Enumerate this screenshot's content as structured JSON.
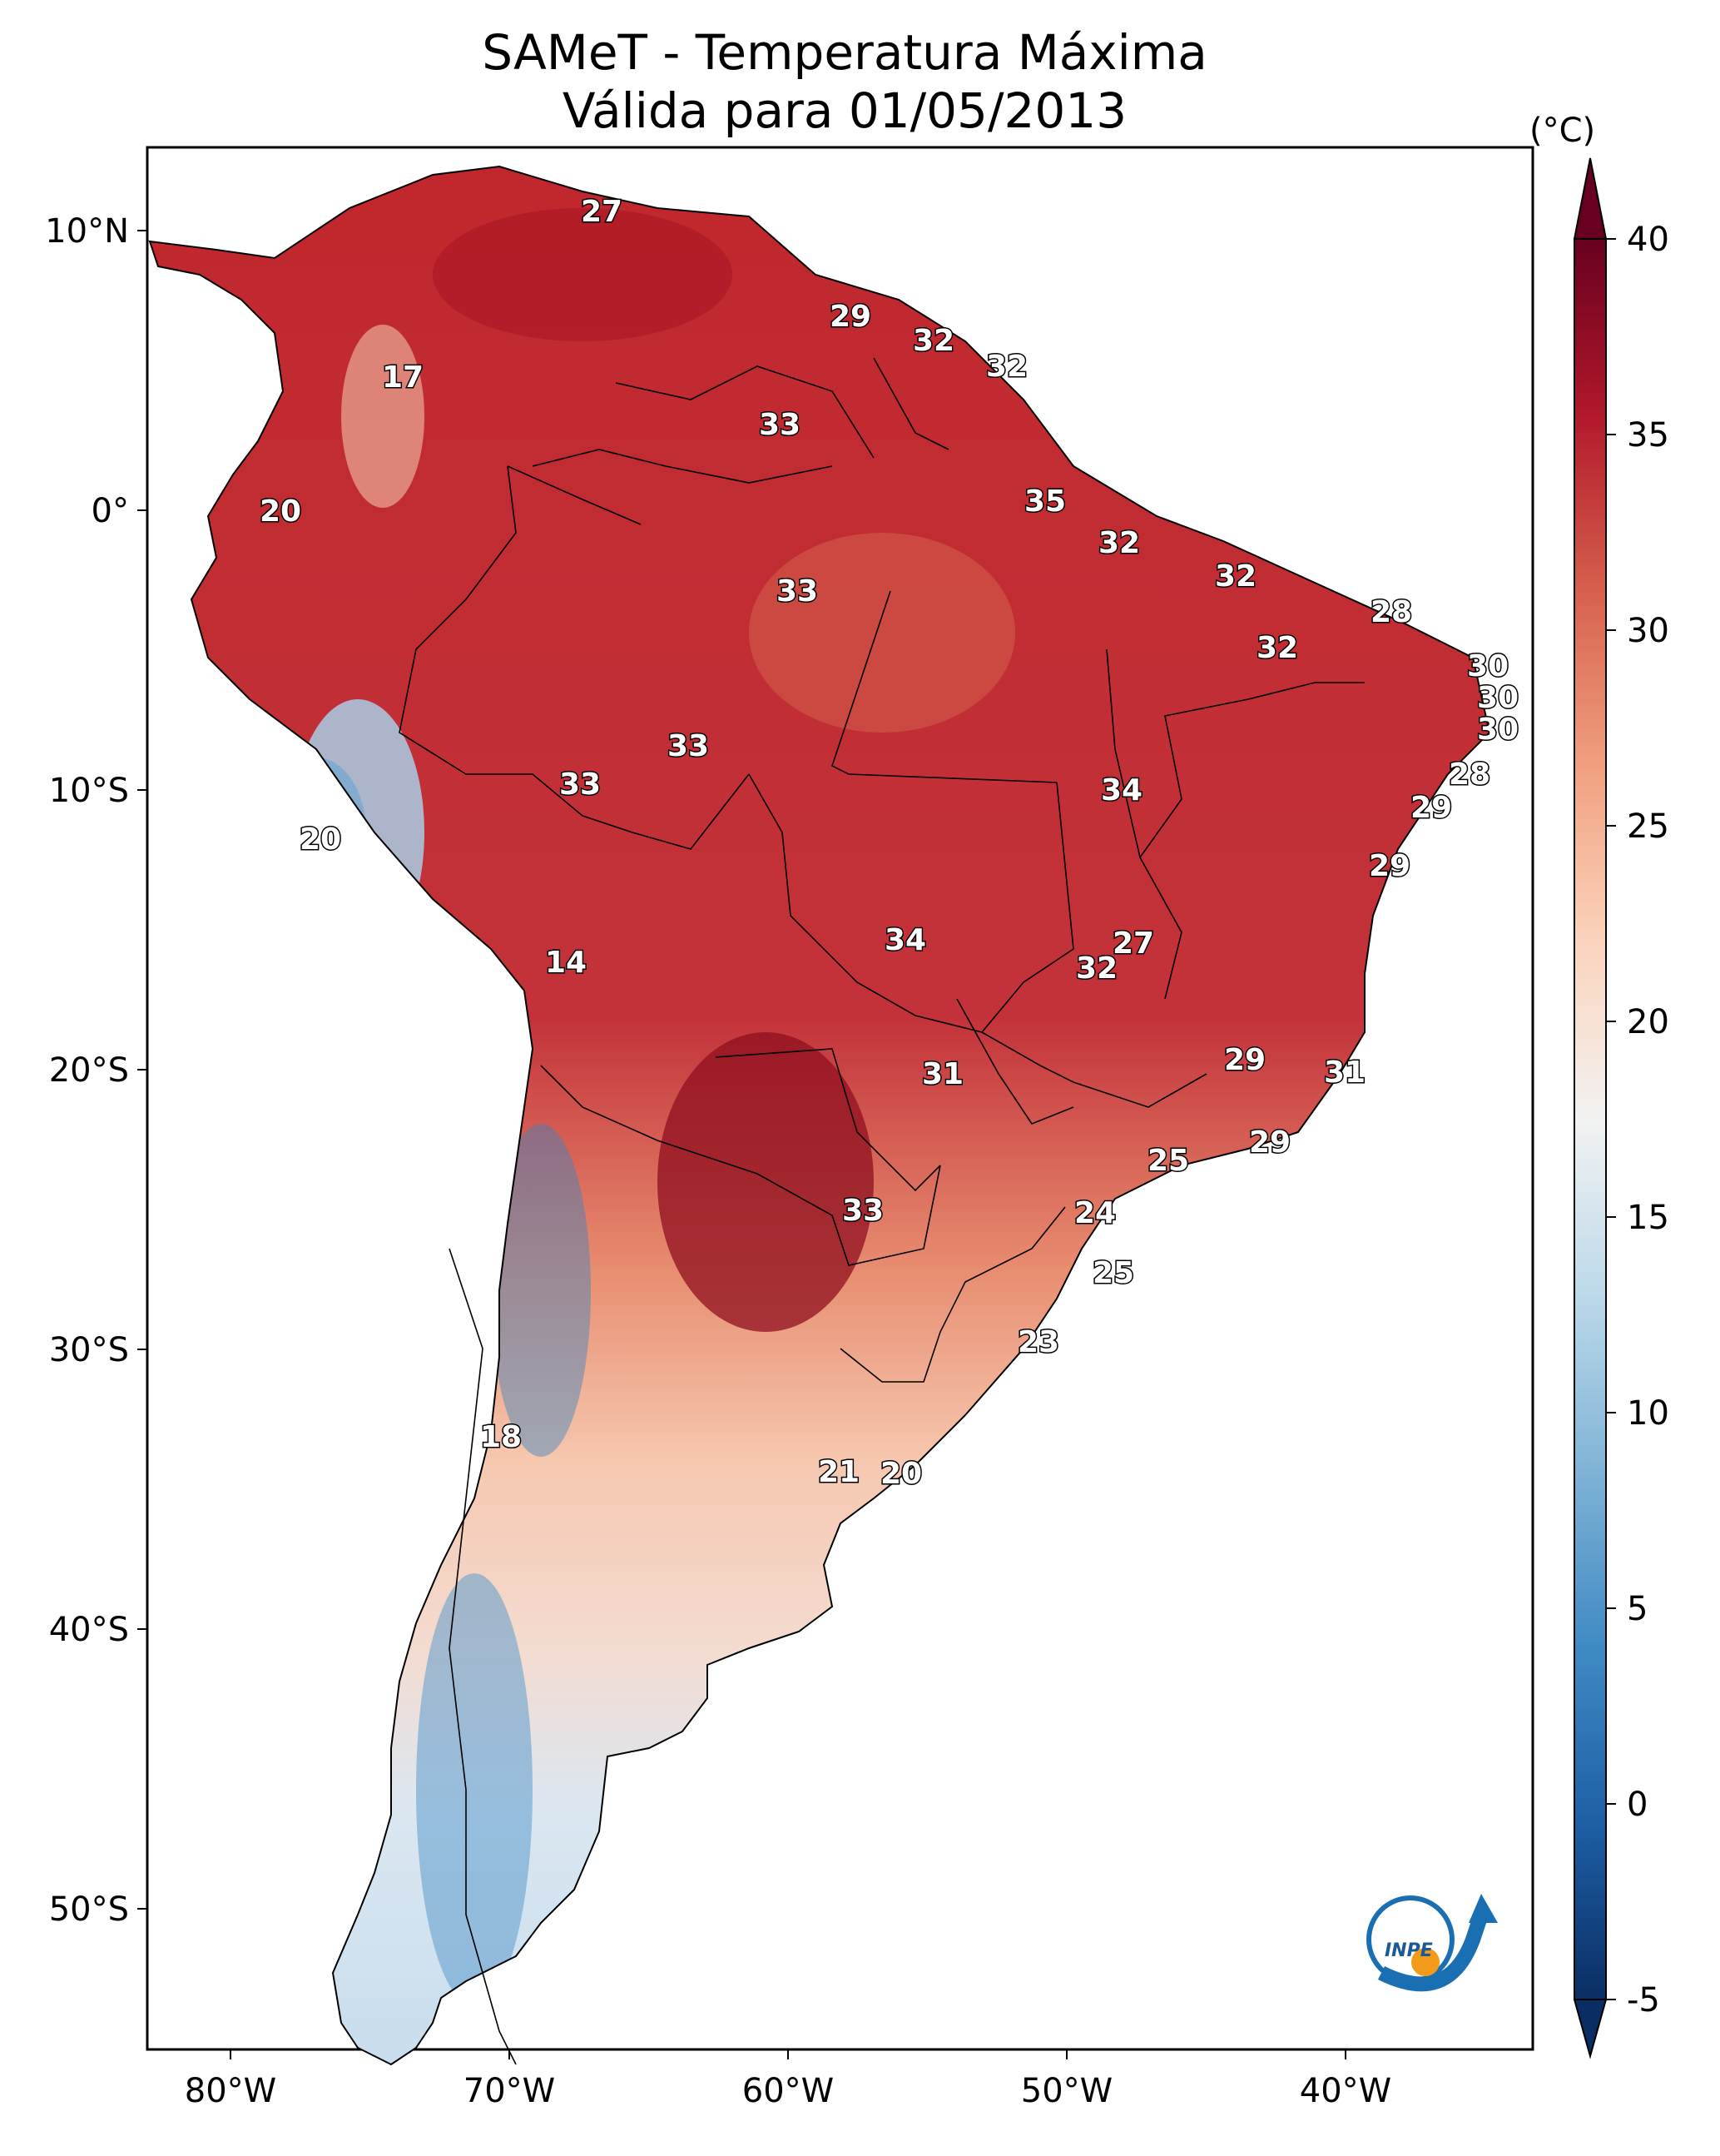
{
  "title_line1": "SAMeT - Temperatura Máxima",
  "title_line2": "Válida para 01/05/2013",
  "colorbar": {
    "unit": "(°C)",
    "min": -5,
    "max": 40,
    "ticks": [
      "40",
      "35",
      "30",
      "25",
      "20",
      "15",
      "10",
      "5",
      "0",
      "-5"
    ],
    "colors": [
      "#0a2e64",
      "#1d5fa5",
      "#3f8ac4",
      "#7fb3d6",
      "#bcd9ea",
      "#f2f2f2",
      "#fbd4bd",
      "#f1a07f",
      "#d6604d",
      "#b2182b",
      "#67001f"
    ]
  },
  "lat_ticks": [
    "10°N",
    "0°",
    "10°S",
    "20°S",
    "30°S",
    "40°S",
    "50°S"
  ],
  "lon_ticks": [
    "80°W",
    "70°W",
    "60°W",
    "50°W",
    "40°W"
  ],
  "labels": [
    "27",
    "17",
    "29",
    "32",
    "32",
    "33",
    "20",
    "35",
    "33",
    "32",
    "32",
    "28",
    "32",
    "30",
    "30",
    "30",
    "28",
    "33",
    "33",
    "34",
    "29",
    "20",
    "29",
    "14",
    "34",
    "27",
    "32",
    "29",
    "31",
    "31",
    "29",
    "25",
    "33",
    "24",
    "25",
    "23",
    "18",
    "21",
    "20"
  ],
  "logo_text": "INPE"
}
